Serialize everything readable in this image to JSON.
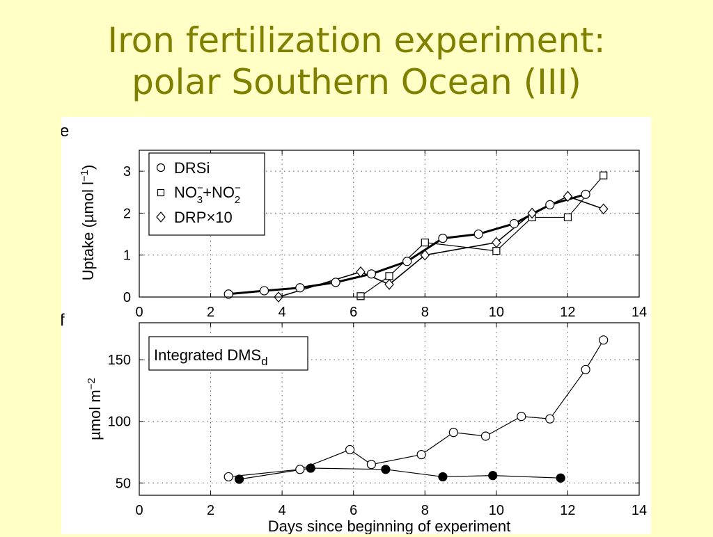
{
  "slide": {
    "title_line1": "Iron fertilization experiment:",
    "title_line2": "polar Southern Ocean (III)"
  },
  "chart_data": [
    {
      "type": "line",
      "panel_label": "e",
      "xlabel": "",
      "ylabel": "Uptake (µmol l",
      "ylabel_sup": "−1",
      "ylabel_close": ")",
      "xlim": [
        0,
        14
      ],
      "ylim": [
        0,
        3.5
      ],
      "xticks": [
        0,
        2,
        4,
        6,
        8,
        10,
        12,
        14
      ],
      "yticks": [
        0,
        1,
        2,
        3
      ],
      "grid": true,
      "legend_position": "top-left",
      "series": [
        {
          "name": "DRSi",
          "marker": "circle",
          "filled": false,
          "x": [
            2.5,
            3.5,
            4.5,
            5.5,
            6.5,
            7.5,
            8.5,
            9.5,
            10.5,
            11.5,
            12.5
          ],
          "y": [
            0.07,
            0.15,
            0.22,
            0.35,
            0.55,
            0.85,
            1.4,
            1.5,
            1.75,
            2.2,
            2.45
          ]
        },
        {
          "name": "NO3−+NO2−",
          "marker": "square",
          "filled": false,
          "x": [
            6.2,
            7.0,
            8.0,
            10.0,
            11.0,
            12.0,
            13.0
          ],
          "y": [
            0.02,
            0.5,
            1.3,
            1.1,
            1.9,
            1.9,
            2.9
          ]
        },
        {
          "name": "DRP×10",
          "marker": "diamond",
          "filled": false,
          "x": [
            3.9,
            6.2,
            7.0,
            8.0,
            10.0,
            11.0,
            12.0,
            13.0
          ],
          "y": [
            0.0,
            0.6,
            0.3,
            1.0,
            1.3,
            2.0,
            2.4,
            2.1
          ]
        }
      ],
      "legend": {
        "items": [
          {
            "marker": "circle",
            "text": "DRSi"
          },
          {
            "marker": "square",
            "text": "NO",
            "sub1": "3",
            "sup1": "−",
            "mid": "+NO",
            "sub2": "2",
            "sup2": "−"
          },
          {
            "marker": "diamond",
            "text": "DRP×10"
          }
        ]
      }
    },
    {
      "type": "line",
      "panel_label": "f",
      "xlabel": "Days since beginning of experiment",
      "ylabel": "µmol m",
      "ylabel_sup": "−2",
      "xlim": [
        0,
        14
      ],
      "ylim": [
        40,
        180
      ],
      "xticks": [
        0,
        2,
        4,
        6,
        8,
        10,
        12,
        14
      ],
      "yticks": [
        50,
        100,
        150
      ],
      "grid": true,
      "annotation": {
        "text": "Integrated DMS",
        "sub": "d"
      },
      "series": [
        {
          "marker": "circle",
          "filled": false,
          "x": [
            2.5,
            4.5,
            5.9,
            6.5,
            7.9,
            8.8,
            9.7,
            10.7,
            11.5,
            12.5,
            13.0
          ],
          "y": [
            55,
            61,
            77,
            65,
            73,
            91,
            88,
            104,
            102,
            142,
            166
          ]
        },
        {
          "marker": "circle",
          "filled": true,
          "x": [
            2.8,
            4.8,
            6.9,
            8.5,
            9.9,
            11.8
          ],
          "y": [
            53,
            62,
            61,
            55,
            56,
            54
          ]
        }
      ]
    }
  ]
}
